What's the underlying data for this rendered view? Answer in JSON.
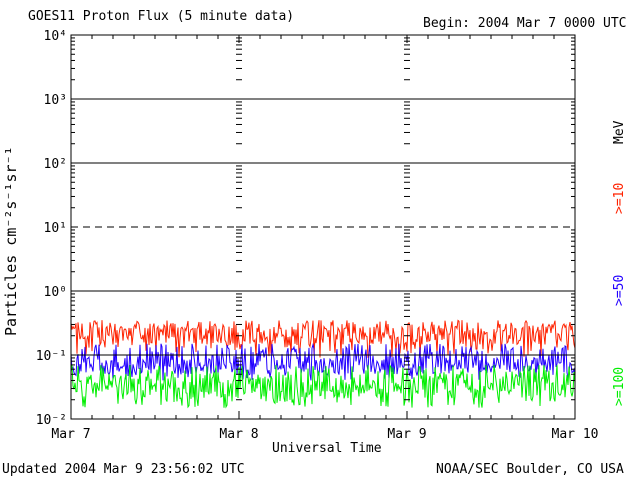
{
  "header": {
    "title": "GOES11 Proton Flux (5 minute data)",
    "begin": "Begin: 2004 Mar 7 0000 UTC"
  },
  "footer": {
    "updated": "Updated 2004 Mar  9 23:56:02 UTC",
    "credit": "NOAA/SEC Boulder, CO USA"
  },
  "right_labels": {
    "unit": "MeV",
    "series_10": ">=10",
    "series_50": ">=50",
    "series_100": ">=100"
  },
  "chart_data": {
    "type": "line",
    "title": "GOES11 Proton Flux (5 minute data)",
    "xlabel": "Universal Time",
    "ylabel": "Particles cm⁻²s⁻¹sr⁻¹",
    "yscale": "log",
    "ylim": [
      0.01,
      10000
    ],
    "ytick_labels": [
      "10⁻²",
      "10⁻¹",
      "10⁰",
      "10¹",
      "10²",
      "10³",
      "10⁴"
    ],
    "ytick_values": [
      0.01,
      0.1,
      1,
      10,
      100,
      1000,
      10000
    ],
    "x_categories": [
      "Mar 7",
      "Mar 8",
      "Mar 9",
      "Mar 10"
    ],
    "xlim": [
      "2004-03-07 00:00",
      "2004-03-10 00:00"
    ],
    "threshold_lines": [
      {
        "value": 10,
        "style": "dashed"
      },
      {
        "value": 0.1,
        "style": "solid"
      }
    ],
    "grid": "horizontal lines at decades",
    "series": [
      {
        "name": ">=10",
        "color": "#ff2200",
        "typical_range": [
          0.09,
          0.35
        ],
        "sample_points": [
          [
            "2004-03-07 00:00",
            0.2
          ],
          [
            "2004-03-08 00:00",
            0.18
          ],
          [
            "2004-03-09 00:00",
            0.2
          ],
          [
            "2004-03-10 00:00",
            0.2
          ]
        ]
      },
      {
        "name": ">=50",
        "color": "#2200ff",
        "typical_range": [
          0.04,
          0.15
        ],
        "sample_points": [
          [
            "2004-03-07 00:00",
            0.07
          ],
          [
            "2004-03-08 00:00",
            0.07
          ],
          [
            "2004-03-09 00:00",
            0.08
          ],
          [
            "2004-03-10 00:00",
            0.08
          ]
        ]
      },
      {
        "name": ">=100",
        "color": "#00ee00",
        "typical_range": [
          0.015,
          0.07
        ],
        "sample_points": [
          [
            "2004-03-07 00:00",
            0.03
          ],
          [
            "2004-03-08 00:00",
            0.03
          ],
          [
            "2004-03-09 00:00",
            0.03
          ],
          [
            "2004-03-10 00:00",
            0.03
          ]
        ]
      }
    ]
  }
}
